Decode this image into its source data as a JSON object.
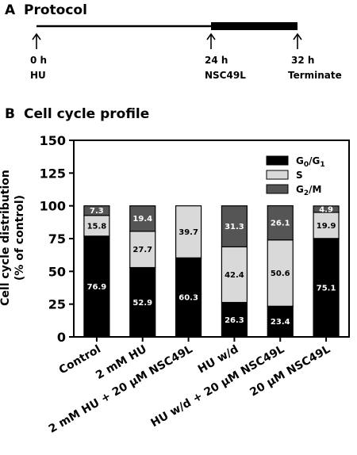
{
  "protocol": {
    "panel_letter": "A",
    "title": "Protocol",
    "events": [
      {
        "time": "0 h",
        "label": "HU"
      },
      {
        "time": "24 h",
        "label": "NSC49L"
      },
      {
        "time": "32 h",
        "label": "Terminate"
      }
    ]
  },
  "profile": {
    "panel_letter": "B",
    "title": "Cell cycle profile"
  },
  "chart_data": {
    "type": "bar",
    "stacked": true,
    "title": "",
    "ylabel": "Cell cycle distribution (% of control)",
    "ylabel_lines": [
      "Cell cycle distribution",
      "(% of control)"
    ],
    "ylim": [
      0,
      150
    ],
    "yticks": [
      0,
      25,
      50,
      75,
      100,
      125,
      150
    ],
    "legend_position": "top-right",
    "categories": [
      "Control",
      "2 mM HU",
      "2 mM HU + 20 μM NSC49L",
      "HU w/d",
      "HU w/d + 20 μM NSC49L",
      "20 μM NSC49L"
    ],
    "series": [
      {
        "name": "G0/G1",
        "name_main": "G",
        "name_sub1": "0",
        "name_mid": "/G",
        "name_sub2": "1",
        "color": "#000000",
        "label_color": "#ffffff",
        "values": [
          76.9,
          52.9,
          60.3,
          26.3,
          23.4,
          75.1
        ]
      },
      {
        "name": "S",
        "color": "#d9d9d9",
        "label_color": "#000000",
        "values": [
          15.8,
          27.7,
          39.7,
          42.4,
          50.6,
          19.9
        ]
      },
      {
        "name": "G2/M",
        "name_main": "G",
        "name_sub1": "2",
        "name_mid": "/M",
        "name_sub2": "",
        "color": "#555555",
        "label_color": "#ffffff",
        "values": [
          7.3,
          19.4,
          null,
          31.3,
          26.1,
          4.9
        ]
      }
    ]
  }
}
